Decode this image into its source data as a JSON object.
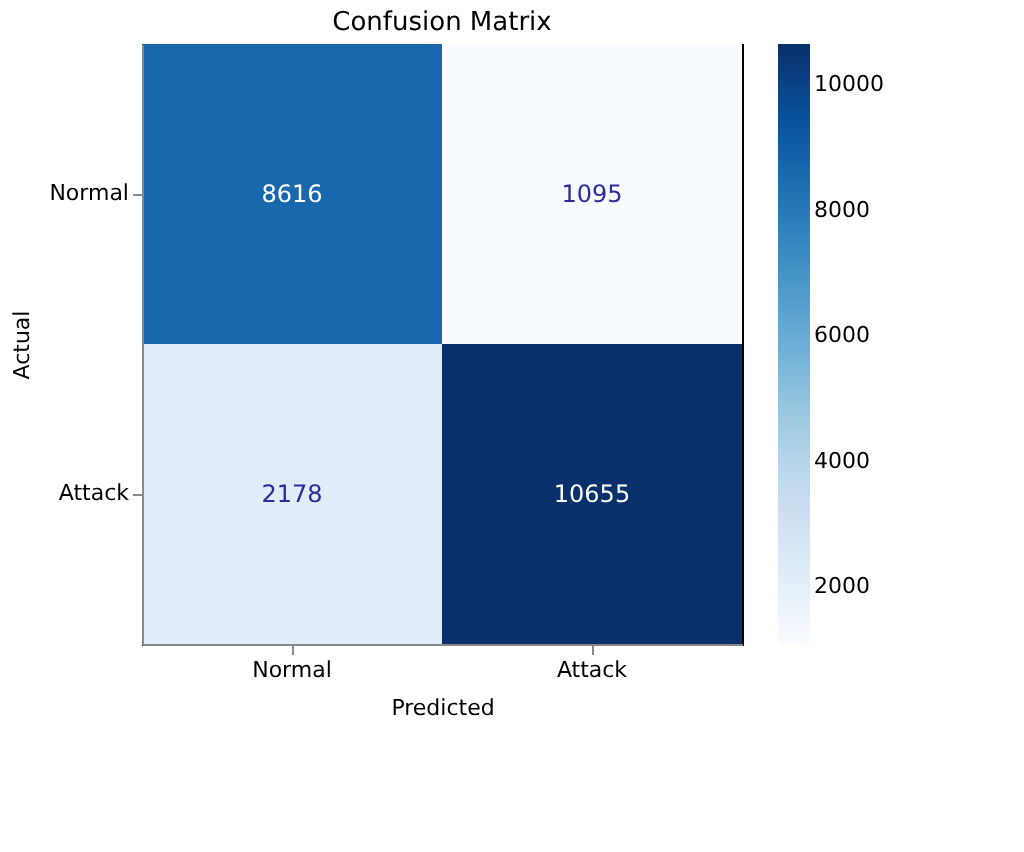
{
  "chart_data": {
    "type": "heatmap",
    "title": "Confusion Matrix",
    "xlabel": "Predicted",
    "ylabel": "Actual",
    "categories": [
      "Normal",
      "Attack"
    ],
    "y_categories": [
      "Normal",
      "Attack"
    ],
    "cells": [
      [
        8616,
        1095
      ],
      [
        2178,
        10655
      ]
    ],
    "clim": [
      1095,
      10655
    ],
    "cticks": [
      2000,
      4000,
      6000,
      8000,
      10000
    ],
    "data_labels": true
  }
}
